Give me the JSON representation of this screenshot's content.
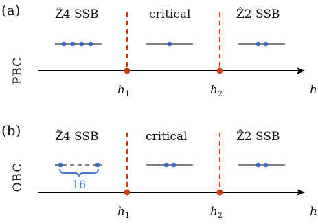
{
  "panels": [
    {
      "label": "(a)",
      "boundary": "PBC",
      "phases": [
        {
          "name": "Z̃4 SSB",
          "dots": 4,
          "dashed": false
        },
        {
          "name": "critical",
          "dots": 1,
          "dashed": false
        },
        {
          "name": "Ẑ2 SSB",
          "dots": 2,
          "dashed": false
        }
      ]
    },
    {
      "label": "(b)",
      "boundary": "OBC",
      "phases": [
        {
          "name": "Z̃4 SSB",
          "dots": 2,
          "dashed": true,
          "count": "16"
        },
        {
          "name": "critical",
          "dots": 2,
          "dashed": false
        },
        {
          "name": "Ẑ2 SSB",
          "dots": 2,
          "dashed": false
        }
      ]
    }
  ],
  "axis": {
    "label": "h",
    "transitions": [
      {
        "symbol": "h",
        "sub": "1"
      },
      {
        "symbol": "h",
        "sub": "2"
      }
    ]
  },
  "colors": {
    "axis": "#000000",
    "transition": "#cc3d10",
    "level": "#7f7f7f",
    "dot": "#3a68c8",
    "brace": "#4a78d0"
  }
}
